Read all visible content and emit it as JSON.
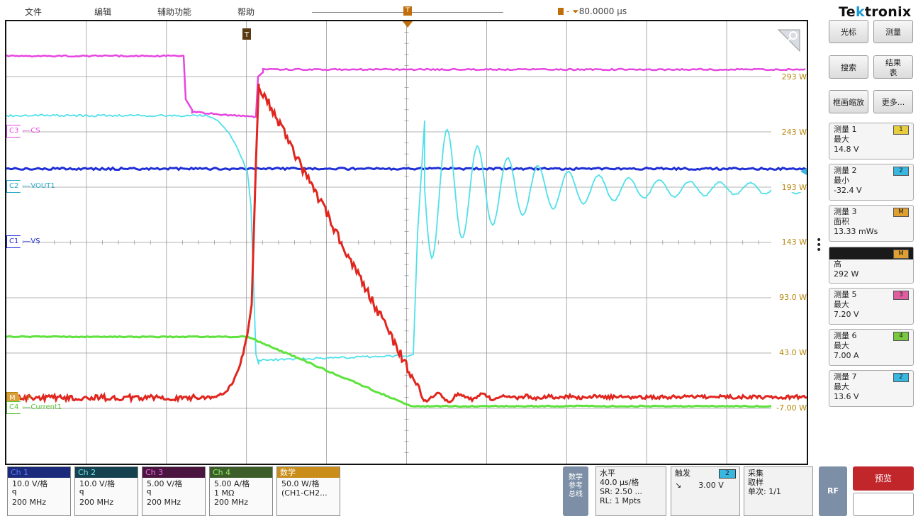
{
  "menu": [
    "文件",
    "编辑",
    "辅助功能",
    "帮助"
  ],
  "time_reference": "80.0000 µs",
  "brand": {
    "pre": "Te",
    "k": "k",
    "post": "tronix"
  },
  "colors": {
    "ch1": "#1f2fd6",
    "ch2": "#4fe0ea",
    "ch3": "#e646e0",
    "ch4": "#5ee23c",
    "math": "#e0261e",
    "scale": "#b7860b",
    "grid": "#9a9a9a",
    "trigger": "#c26d0c"
  },
  "channel_markers": [
    {
      "id": "C3",
      "name": "CS",
      "color": "#e646e0"
    },
    {
      "id": "C2",
      "name": "VOUT1",
      "color": "#2aa8c8"
    },
    {
      "id": "C1",
      "name": "VS",
      "color": "#1f2fd6"
    },
    {
      "id": "M",
      "name": "P",
      "color": "#b7860b"
    },
    {
      "id": "C4",
      "name": "Current1",
      "color": "#5ec23c"
    }
  ],
  "trigger_marker": "T",
  "scale_labels": [
    "293 W",
    "243 W",
    "193 W",
    "143 W",
    "93.0 W",
    "43.0 W",
    "-7.00 W"
  ],
  "sidebar": {
    "buttons": [
      "光标",
      "测量",
      "搜索",
      "结果\n表",
      "框画缩放",
      "更多..."
    ],
    "measurements": [
      {
        "title": "测量 1",
        "badge": "1",
        "badge_color": "#e8cd3c",
        "type": "最大",
        "value": "14.8 V"
      },
      {
        "title": "测量 2",
        "badge": "2",
        "badge_color": "#38b8e0",
        "type": "最小",
        "value": "-32.4 V"
      },
      {
        "title": "测量 3",
        "badge": "M",
        "badge_color": "#e0a030",
        "type": "面积",
        "value": "13.33 mWs"
      },
      {
        "title": "",
        "badge": "M",
        "badge_color": "#e0a030",
        "type": "高",
        "value": "292 W"
      },
      {
        "title": "测量 5",
        "badge": "3",
        "badge_color": "#e05da0",
        "type": "最大",
        "value": "7.20 V"
      },
      {
        "title": "测量 6",
        "badge": "4",
        "badge_color": "#78c840",
        "type": "最大",
        "value": "7.00 A"
      },
      {
        "title": "测量 7",
        "badge": "2",
        "badge_color": "#38b8e0",
        "type": "最大",
        "value": "13.6 V"
      }
    ]
  },
  "channels": [
    {
      "header": "Ch 1",
      "color": "#1b2a7a",
      "text": "#5d7cff",
      "scale": "10.0 V/格",
      "icon": "ꟼ",
      "bw": "200 MHz"
    },
    {
      "header": "Ch 2",
      "color": "#16424f",
      "text": "#6fe4ee",
      "scale": "10.0 V/格",
      "icon": "ꟼ",
      "bw": "200 MHz"
    },
    {
      "header": "Ch 3",
      "color": "#4a1640",
      "text": "#f06ee8",
      "scale": "5.00 V/格",
      "icon": "ꟼ",
      "bw": "200 MHz"
    },
    {
      "header": "Ch 4",
      "color": "#3d5e2a",
      "text": "#8ef26a",
      "scale": "5.00 A/格",
      "icon": "1 MΩ",
      "bw": "200 MHz"
    },
    {
      "header": "数学",
      "color": "#c98d1a",
      "text": "#ffffff",
      "scale": "50.0 W/格",
      "icon": "(CH1-CH2...",
      "bw": ""
    }
  ],
  "math_ref_bus": "数学\n参考\n总线",
  "horizontal": {
    "title": "水平",
    "line1": "40.0 µs/格",
    "line2": "SR: 2.50 ...",
    "line3": "RL: 1 Mpts"
  },
  "trigger": {
    "title": "触发",
    "badge": "2",
    "slope": "↘",
    "level": "3.00 V"
  },
  "acquire": {
    "title": "采集",
    "mode": "取样",
    "count": "单次: 1/1"
  },
  "rf_label": "RF",
  "run_label": "预览"
}
